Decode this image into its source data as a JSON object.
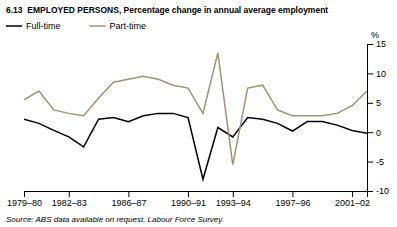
{
  "chart_data": {
    "type": "line",
    "title": "6.13  EMPLOYED PERSONS, Percentage change in annual average employment",
    "annotations": [
      "Source: ABS data available on request, Labour Force Survey."
    ],
    "ylabel": "%",
    "categories": [
      "1979–80",
      null,
      null,
      "1982–83",
      null,
      null,
      null,
      "1986–87",
      null,
      null,
      null,
      "1990–91",
      null,
      null,
      "1993–94",
      null,
      null,
      null,
      "1997–96",
      null,
      null,
      null,
      "2001–02",
      null
    ],
    "series": [
      {
        "name": "Full-time",
        "color": "#000000",
        "values": [
          2.2,
          1.5,
          0.3,
          -0.8,
          -2.5,
          2.2,
          2.5,
          1.8,
          2.8,
          3.2,
          3.2,
          2.5,
          -8.0,
          0.8,
          -0.8,
          2.5,
          2.2,
          1.5,
          0.2,
          1.8,
          1.8,
          1.2,
          0.3,
          -0.2
        ]
      },
      {
        "name": "Part-time",
        "color": "#9e9472",
        "values": [
          5.5,
          7.0,
          3.8,
          3.2,
          2.8,
          5.8,
          8.5,
          9.0,
          9.5,
          9.0,
          8.0,
          7.5,
          3.2,
          13.5,
          -5.5,
          7.5,
          8.0,
          3.8,
          2.8,
          2.8,
          2.8,
          3.2,
          4.5,
          7.0
        ]
      }
    ],
    "ylim": [
      -10,
      15
    ],
    "yticks": [
      -10,
      -5,
      0,
      5,
      10,
      15
    ],
    "grid": false,
    "legend": "upper left"
  }
}
